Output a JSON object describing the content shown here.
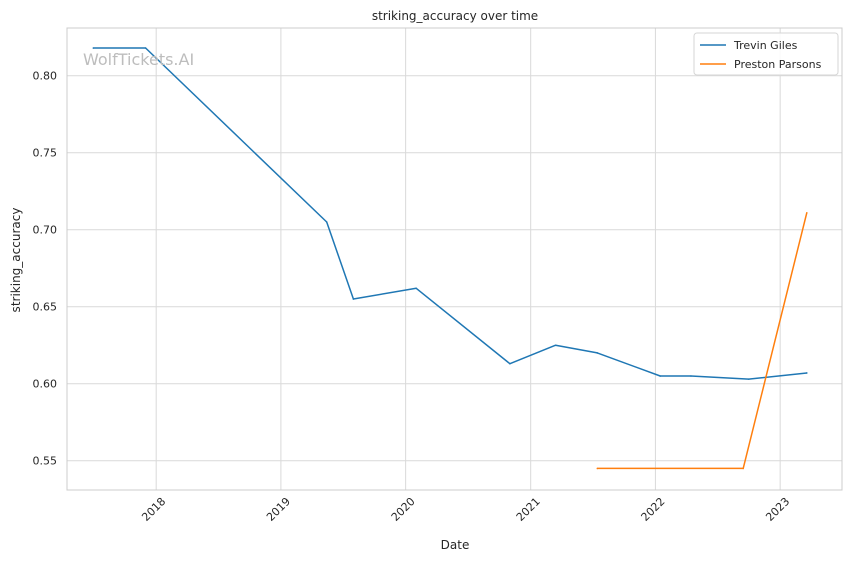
{
  "watermark": "WolfTickets.AI",
  "chart_data": {
    "type": "line",
    "title": "striking_accuracy over time",
    "xlabel": "Date",
    "ylabel": "striking_accuracy",
    "x_ticks": [
      "2018",
      "2019",
      "2020",
      "2021",
      "2022",
      "2023"
    ],
    "y_ticks": [
      "0.55",
      "0.60",
      "0.65",
      "0.70",
      "0.75",
      "0.80"
    ],
    "xlim": [
      "2017-04-15",
      "2023-07-01"
    ],
    "ylim": [
      0.531,
      0.831
    ],
    "grid": true,
    "legend_position": "top-right",
    "series": [
      {
        "name": "Trevin Giles",
        "color": "#1f77b4",
        "points": [
          {
            "x": "2017-07-01",
            "y": 0.818
          },
          {
            "x": "2017-12-01",
            "y": 0.818
          },
          {
            "x": "2019-05-15",
            "y": 0.705
          },
          {
            "x": "2019-08-01",
            "y": 0.655
          },
          {
            "x": "2020-02-01",
            "y": 0.662
          },
          {
            "x": "2020-11-01",
            "y": 0.613
          },
          {
            "x": "2021-03-15",
            "y": 0.625
          },
          {
            "x": "2021-07-15",
            "y": 0.62
          },
          {
            "x": "2022-01-15",
            "y": 0.605
          },
          {
            "x": "2022-04-15",
            "y": 0.605
          },
          {
            "x": "2022-10-01",
            "y": 0.603
          },
          {
            "x": "2023-03-20",
            "y": 0.607
          }
        ]
      },
      {
        "name": "Preston Parsons",
        "color": "#ff7f0e",
        "points": [
          {
            "x": "2021-07-15",
            "y": 0.545
          },
          {
            "x": "2022-09-15",
            "y": 0.545
          },
          {
            "x": "2023-03-20",
            "y": 0.711
          }
        ]
      }
    ]
  }
}
